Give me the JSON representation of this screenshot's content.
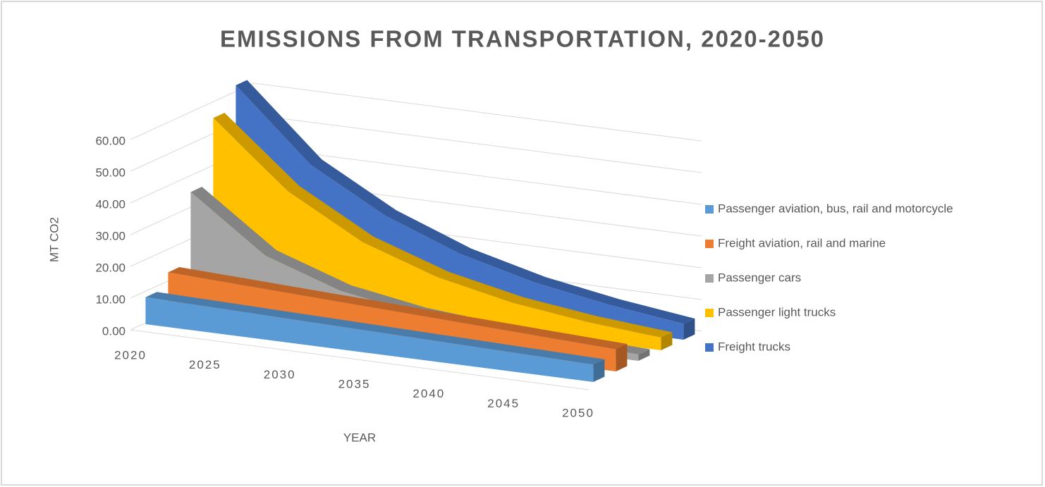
{
  "chart_data": {
    "type": "area",
    "title": "EMISSIONS FROM TRANSPORTATION, 2020-2050",
    "x_label": "YEAR",
    "y_label": "MT CO2",
    "x": [
      2020,
      2025,
      2030,
      2035,
      2040,
      2045,
      2050
    ],
    "xlim": [
      2020,
      2050
    ],
    "ylim": [
      0,
      60
    ],
    "yticks": [
      {
        "value": 0,
        "label": "0.00"
      },
      {
        "value": 10,
        "label": "10.00"
      },
      {
        "value": 20,
        "label": "20.00"
      },
      {
        "value": 30,
        "label": "30.00"
      },
      {
        "value": 40,
        "label": "40.00"
      },
      {
        "value": 50,
        "label": "50.00"
      },
      {
        "value": 60,
        "label": "60.00"
      }
    ],
    "grid": true,
    "legend": "right",
    "series": [
      {
        "name": "Passenger aviation, bus, rail and motorcycle",
        "color": "#5b9bd5",
        "values": [
          8.5,
          8.0,
          7.5,
          7.0,
          6.5,
          6.0,
          5.5
        ]
      },
      {
        "name": "Freight aviation, rail and marine",
        "color": "#ed7d31",
        "values": [
          13,
          12,
          11,
          10,
          9,
          8,
          7
        ]
      },
      {
        "name": "Passenger cars",
        "color": "#a5a5a5",
        "values": [
          35,
          18,
          10,
          6,
          4,
          3,
          2
        ]
      },
      {
        "name": "Passenger light trucks",
        "color": "#ffc000",
        "values": [
          55,
          35,
          22,
          14,
          9,
          6,
          4
        ]
      },
      {
        "name": "Freight trucks",
        "color": "#4472c4",
        "values": [
          62,
          40,
          27,
          18,
          12,
          8,
          5
        ]
      }
    ]
  }
}
